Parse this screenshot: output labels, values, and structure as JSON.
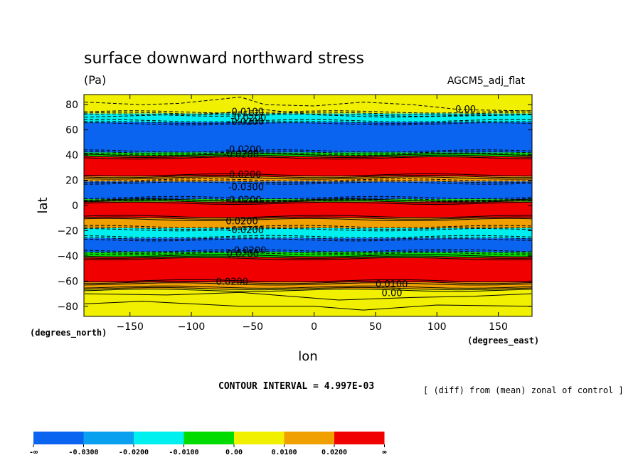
{
  "chart_data": {
    "type": "heatmap",
    "title": "surface downward northward stress",
    "units": "(Pa)",
    "dataset": "AGCM5_adj_flat",
    "xlabel": "lon",
    "ylabel": "lat",
    "x_unit": "(degrees_east)",
    "y_unit": "(degrees_north)",
    "xlim": [
      -187.5,
      177.5
    ],
    "ylim": [
      -88,
      88
    ],
    "x_ticks": [
      -150,
      -100,
      -50,
      0,
      50,
      100,
      150
    ],
    "y_ticks": [
      80,
      60,
      40,
      20,
      0,
      -20,
      -40,
      -60,
      -80
    ],
    "contour_interval": "CONTOUR INTERVAL = 4.997E-03",
    "note": "[ (diff) from (mean) zonal of control ]",
    "colorbar": {
      "labels": [
        "-∞",
        "-0.0300",
        "-0.0200",
        "-0.0100",
        "0.00",
        "0.0100",
        "0.0200",
        "∞"
      ],
      "colors": [
        "#0a64f0",
        "#0aa0f0",
        "#00f0f0",
        "#00dc00",
        "#f0f000",
        "#f0a000",
        "#f00000"
      ]
    },
    "bands": [
      {
        "lat_top": 88,
        "lat_bottom": 73,
        "value": 0.005
      },
      {
        "lat_top": 73,
        "lat_bottom": 66,
        "value": -0.012
      },
      {
        "lat_top": 66,
        "lat_bottom": 42,
        "value": -0.035
      },
      {
        "lat_top": 42,
        "lat_bottom": 39,
        "value": -0.005
      },
      {
        "lat_top": 39,
        "lat_bottom": 23,
        "value": 0.035
      },
      {
        "lat_top": 23,
        "lat_bottom": 19,
        "value": 0.015
      },
      {
        "lat_top": 19,
        "lat_bottom": 5,
        "value": -0.035
      },
      {
        "lat_top": 5,
        "lat_bottom": 3,
        "value": -0.005
      },
      {
        "lat_top": 3,
        "lat_bottom": -10,
        "value": 0.035
      },
      {
        "lat_top": -10,
        "lat_bottom": -18,
        "value": 0.012
      },
      {
        "lat_top": -18,
        "lat_bottom": -26,
        "value": -0.015
      },
      {
        "lat_top": -26,
        "lat_bottom": -37,
        "value": -0.035
      },
      {
        "lat_top": -37,
        "lat_bottom": -41,
        "value": -0.005
      },
      {
        "lat_top": -41,
        "lat_bottom": -61,
        "value": 0.035
      },
      {
        "lat_top": -61,
        "lat_bottom": -66,
        "value": 0.015
      },
      {
        "lat_top": -66,
        "lat_bottom": -88,
        "value": 0.005
      }
    ],
    "contour_labels": [
      {
        "text": "-0.0100",
        "lon": -70,
        "lat": 72
      },
      {
        "text": "-0.0200",
        "lon": -68,
        "lat": 67
      },
      {
        "text": "-0.0200",
        "lon": -70,
        "lat": 64
      },
      {
        "text": "0.00",
        "lon": 115,
        "lat": 74
      },
      {
        "text": "-0.0200",
        "lon": -72,
        "lat": 42
      },
      {
        "text": "-0.0200",
        "lon": -74,
        "lat": 38
      },
      {
        "text": "-0.0200",
        "lon": -72,
        "lat": 22
      },
      {
        "text": "-0.0300",
        "lon": -70,
        "lat": 12
      },
      {
        "text": "-0.0200",
        "lon": -72,
        "lat": 2
      },
      {
        "text": "0.0200",
        "lon": -72,
        "lat": -15
      },
      {
        "text": "-0.0200",
        "lon": -70,
        "lat": -22
      },
      {
        "text": "-0.0200",
        "lon": -68,
        "lat": -38
      },
      {
        "text": "-0.0200",
        "lon": -74,
        "lat": -41
      },
      {
        "text": "0.0200",
        "lon": -80,
        "lat": -63
      },
      {
        "text": "0.0100",
        "lon": 50,
        "lat": -65
      },
      {
        "text": "0.00",
        "lon": 55,
        "lat": -72
      }
    ]
  }
}
